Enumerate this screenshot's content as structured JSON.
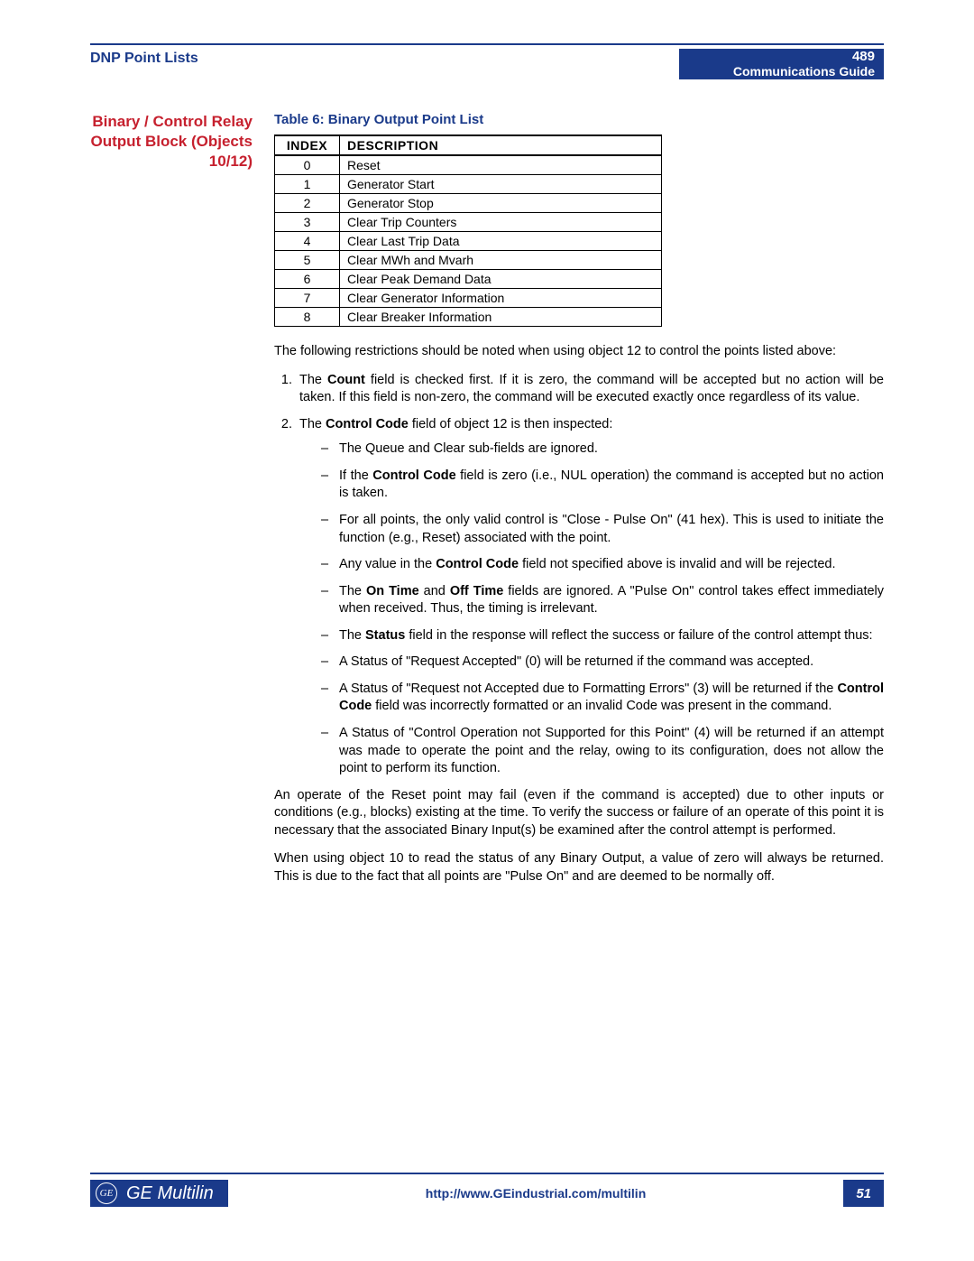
{
  "header": {
    "left": "DNP Point Lists",
    "product": "489",
    "guide": "Communications Guide"
  },
  "side_heading": {
    "line1": "Binary / Control Relay",
    "line2": "Output Block (Objects",
    "line3": "10/12)"
  },
  "table": {
    "title": "Table 6: Binary Output Point List",
    "col_index": "INDEX",
    "col_desc": "DESCRIPTION",
    "rows": [
      {
        "idx": "0",
        "desc": "Reset"
      },
      {
        "idx": "1",
        "desc": "Generator Start"
      },
      {
        "idx": "2",
        "desc": "Generator Stop"
      },
      {
        "idx": "3",
        "desc": "Clear Trip Counters"
      },
      {
        "idx": "4",
        "desc": "Clear Last Trip Data"
      },
      {
        "idx": "5",
        "desc": "Clear MWh and Mvarh"
      },
      {
        "idx": "6",
        "desc": "Clear Peak Demand Data"
      },
      {
        "idx": "7",
        "desc": "Clear Generator Information"
      },
      {
        "idx": "8",
        "desc": "Clear Breaker Information"
      }
    ]
  },
  "paras": {
    "intro": "The following restrictions should be noted when using object 12 to control the points listed above:",
    "item1_pre": "The ",
    "item1_bold": "Count",
    "item1_post": " field is checked first. If it is zero, the command will be accepted but no action will be taken. If this field is non-zero, the command will be executed exactly once regardless of its value.",
    "item2_pre": "The ",
    "item2_bold": "Control Code",
    "item2_post": " field of object 12 is then inspected:",
    "d1": "The Queue and Clear sub-fields are ignored.",
    "d2_pre": "If the ",
    "d2_bold": "Control Code",
    "d2_post": " field is zero (i.e., NUL operation) the command is accepted but no action is taken.",
    "d3": "For all points, the only valid control is \"Close - Pulse On\" (41 hex). This is used to initiate the function (e.g., Reset) associated with the point.",
    "d4_pre": "Any value in the ",
    "d4_bold": "Control Code",
    "d4_post": " field not specified above is invalid and will be rejected.",
    "d5_pre": "The ",
    "d5_b1": "On Time",
    "d5_mid": " and ",
    "d5_b2": "Off Time",
    "d5_post": " fields are ignored. A  \"Pulse On\" control takes effect immediately when received. Thus, the timing is irrelevant.",
    "d6_pre": "The ",
    "d6_bold": "Status",
    "d6_post": " field in the response will reflect the success or failure of the control attempt thus:",
    "d7": "A Status of \"Request Accepted\" (0) will be returned if the command was accepted.",
    "d8_pre": "A Status of \"Request not Accepted due to Formatting Errors\" (3) will be returned if the ",
    "d8_bold": "Control Code",
    "d8_post": " field was incorrectly formatted or an invalid Code was present in the command.",
    "d9": "A Status of \"Control Operation not Supported for this Point\" (4) will be returned if an attempt was made to operate the point and the relay, owing to its configuration, does not allow the point to perform its function.",
    "after1": "An operate of the Reset point may fail (even if the command is accepted) due to other inputs or conditions (e.g., blocks) existing at the time. To verify the success or failure of an operate of this point it is necessary that the associated Binary Input(s) be examined after the control attempt is performed.",
    "after2": "When using object 10 to read the status of any Binary Output, a value of zero will always be returned. This is due to the fact that all points are \"Pulse On\" and are deemed to be normally off."
  },
  "footer": {
    "brand_monogram": "GE",
    "brand": "GE Multilin",
    "url": "http://www.GEindustrial.com/multilin",
    "page": "51"
  },
  "colors": {
    "brand_blue": "#1a3a8a",
    "accent_red": "#c6202e",
    "background": "#ffffff"
  }
}
